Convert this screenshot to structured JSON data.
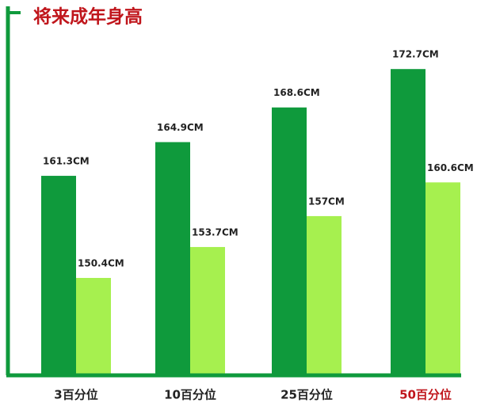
{
  "chart_data": {
    "type": "bar",
    "title": "将来成年身高",
    "categories": [
      "3百分位",
      "10百分位",
      "25百分位",
      "50百分位"
    ],
    "category_label_colors": [
      "#222222",
      "#222222",
      "#222222",
      "#c0161c"
    ],
    "series": [
      {
        "color": "#0f9a3c",
        "values": [
          161.3,
          164.9,
          168.6,
          172.7
        ],
        "value_labels": [
          "161.3CM",
          "164.9CM",
          "168.6CM",
          "172.7CM"
        ]
      },
      {
        "color": "#a6f04f",
        "values": [
          150.4,
          153.7,
          157,
          160.6
        ],
        "value_labels": [
          "150.4CM",
          "153.7CM",
          "157CM",
          "160.6CM"
        ]
      }
    ],
    "ylim": [
      140,
      175
    ],
    "axis_color": "#0f9a3c",
    "title_color": "#c0161c"
  }
}
